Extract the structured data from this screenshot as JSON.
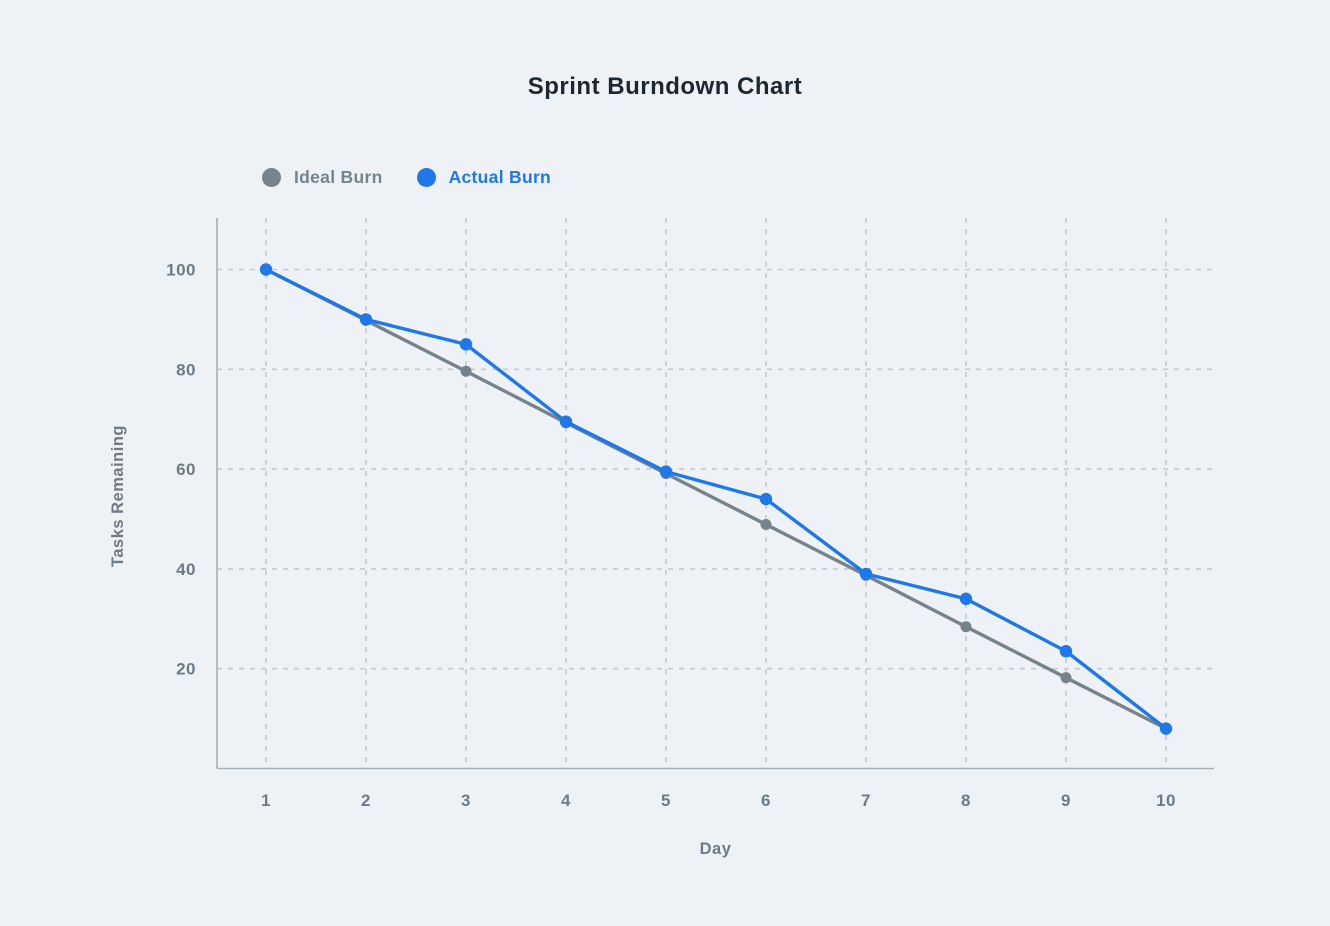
{
  "page": {
    "background": "#eef2f6"
  },
  "chart_data": {
    "type": "line",
    "title": "Sprint Burndown Chart",
    "xlabel": "Day",
    "ylabel": "Tasks Remaining",
    "x": [
      1,
      2,
      3,
      4,
      5,
      6,
      7,
      8,
      9,
      10
    ],
    "yticks": [
      20,
      40,
      60,
      80,
      100
    ],
    "ylim": [
      0,
      110
    ],
    "xlim": [
      1,
      10
    ],
    "grid": "dashed-both",
    "legend_position": "top-left",
    "series": [
      {
        "name": "Ideal Burn",
        "color": "#78828b",
        "values": [
          100,
          89.8,
          79.6,
          69.3,
          59.1,
          48.9,
          38.7,
          28.4,
          18.2,
          8
        ]
      },
      {
        "name": "Actual Burn",
        "color": "#1e78e8",
        "values": [
          100,
          90,
          85,
          69.5,
          59.5,
          54,
          39,
          34,
          23.5,
          8
        ]
      }
    ],
    "colors": {
      "grid": "#c5cad1",
      "axis": "#a9afb6",
      "tick_text": "#717a84",
      "title_text": "#1d2733",
      "background": "#eef2f6"
    }
  }
}
